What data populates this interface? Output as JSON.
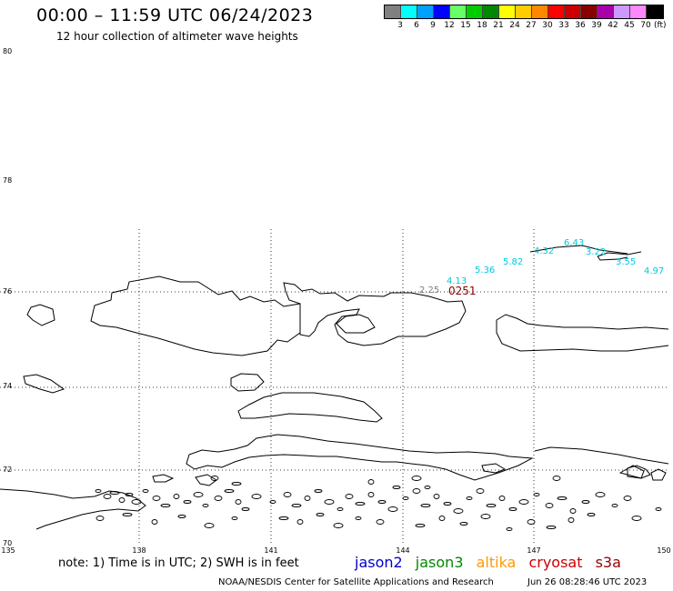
{
  "header": {
    "title": "00:00 – 11:59 UTC 06/24/2023",
    "subtitle": "12 hour collection of altimeter wave heights"
  },
  "legend": {
    "colors": [
      "#808080",
      "#00ffff",
      "#00a0ff",
      "#0000ff",
      "#66ff66",
      "#00cc00",
      "#008800",
      "#ffff00",
      "#ffcc00",
      "#ff8800",
      "#ff0000",
      "#cc0000",
      "#880000",
      "#aa00aa",
      "#cc99ff",
      "#ff88ff",
      "#000000"
    ],
    "tick_labels": [
      "3",
      "6",
      "9",
      "12",
      "15",
      "18",
      "21",
      "24",
      "27",
      "30",
      "33",
      "36",
      "39",
      "42",
      "45",
      "70"
    ],
    "unit": "(ft)"
  },
  "map": {
    "lat_labels": [
      "80",
      "78",
      "76",
      "74",
      "72",
      "70"
    ],
    "lon_labels": [
      "135",
      "138",
      "141",
      "144",
      "147",
      "150"
    ],
    "observations": [
      {
        "value": "2.25",
        "color": "#808080"
      },
      {
        "value": "4.13",
        "color": "#00c8e0"
      },
      {
        "value": "5.36",
        "color": "#00c8e0"
      },
      {
        "value": "5.82",
        "color": "#00c8e0"
      },
      {
        "value": "4.32",
        "color": "#00c8e0"
      },
      {
        "value": "6.43",
        "color": "#00c8e0"
      },
      {
        "value": "3.22",
        "color": "#00c8e0"
      },
      {
        "value": "3.55",
        "color": "#00c8e0"
      },
      {
        "value": "4.97",
        "color": "#00c8e0"
      }
    ],
    "pass_time": {
      "value": "0251",
      "color": "#880000"
    }
  },
  "footer": {
    "note": "note:  1) Time is in UTC;  2) SWH is in feet",
    "satellites": [
      {
        "name": "jason2",
        "color": "#0000cc"
      },
      {
        "name": "jason3",
        "color": "#008800"
      },
      {
        "name": "altika",
        "color": "#ff9900"
      },
      {
        "name": "cryosat",
        "color": "#cc0000"
      },
      {
        "name": "s3a",
        "color": "#990000"
      }
    ],
    "credit": "NOAA/NESDIS Center for Satellite Applications and Research",
    "timestamp": "Jun 26 08:28:46 UTC 2023"
  }
}
